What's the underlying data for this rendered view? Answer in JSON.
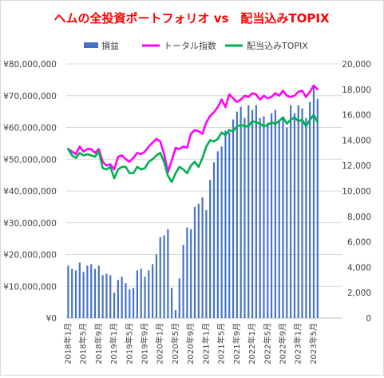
{
  "chart_data": {
    "type": "bar+line",
    "title": "ヘムの全投資ポートフォリオ vs　配当込みTOPIX",
    "legend_position": "top",
    "grid": true,
    "categories": [
      "2018年1月",
      "2018年2月",
      "2018年3月",
      "2018年4月",
      "2018年5月",
      "2018年6月",
      "2018年7月",
      "2018年8月",
      "2018年9月",
      "2018年10月",
      "2018年11月",
      "2018年12月",
      "2019年1月",
      "2019年2月",
      "2019年3月",
      "2019年4月",
      "2019年5月",
      "2019年6月",
      "2019年7月",
      "2019年8月",
      "2019年9月",
      "2019年10月",
      "2019年11月",
      "2019年12月",
      "2020年1月",
      "2020年2月",
      "2020年3月",
      "2020年4月",
      "2020年5月",
      "2020年6月",
      "2020年7月",
      "2020年8月",
      "2020年9月",
      "2020年10月",
      "2020年11月",
      "2020年12月",
      "2021年1月",
      "2021年2月",
      "2021年3月",
      "2021年4月",
      "2021年5月",
      "2021年6月",
      "2021年7月",
      "2021年8月",
      "2021年9月",
      "2021年10月",
      "2021年11月",
      "2021年12月",
      "2022年1月",
      "2022年2月",
      "2022年3月",
      "2022年4月",
      "2022年5月",
      "2022年6月",
      "2022年7月",
      "2022年8月",
      "2022年9月",
      "2022年10月",
      "2022年11月",
      "2022年12月",
      "2023年1月",
      "2023年2月",
      "2023年3月",
      "2023年4月",
      "2023年5月",
      "2023年6月",
      "2023年7月",
      "2023年8月",
      "2023年9月",
      "2023年10月",
      "2023年11月",
      "2023年12月"
    ],
    "x_tick_labels": [
      "2018年1月",
      "2018年5月",
      "2018年9月",
      "2019年1月",
      "2019年5月",
      "2019年9月",
      "2020年1月",
      "2020年5月",
      "2020年9月",
      "2021年1月",
      "2021年5月",
      "2021年9月",
      "2022年1月",
      "2022年5月",
      "2022年9月",
      "2023年1月",
      "2023年5月"
    ],
    "y_left": {
      "min": 0,
      "max": 80000000,
      "step": 10000000,
      "tick_labels": [
        "¥0",
        "¥10,000,000",
        "¥20,000,000",
        "¥30,000,000",
        "¥40,000,000",
        "¥50,000,000",
        "¥60,000,000",
        "¥70,000,000",
        "¥80,000,000"
      ]
    },
    "y_right": {
      "min": 0,
      "max": 20000,
      "step": 2000,
      "tick_labels": [
        "0",
        "2,000",
        "4,000",
        "6,000",
        "8,000",
        "10,000",
        "12,000",
        "14,000",
        "16,000",
        "18,000",
        "20,000"
      ]
    },
    "series": [
      {
        "name": "損益",
        "type": "bar",
        "axis": "left",
        "color": "#4472C4",
        "values": [
          16500000,
          15500000,
          15000000,
          17500000,
          14500000,
          16500000,
          17000000,
          15500000,
          16500000,
          13500000,
          14000000,
          13500000,
          8000000,
          12000000,
          13000000,
          11000000,
          9000000,
          9500000,
          15000000,
          15500000,
          13000000,
          15000000,
          17000000,
          20000000,
          25500000,
          26000000,
          28000000,
          9500000,
          2500000,
          12500000,
          23000000,
          28500000,
          28000000,
          35000000,
          36000000,
          38000000,
          34000000,
          43500000,
          49000000,
          52500000,
          54000000,
          59000000,
          58500000,
          62500000,
          65000000,
          66500000,
          63000000,
          67000000,
          65500000,
          67000000,
          63000000,
          63500000,
          61500000,
          64500000,
          65500000,
          62500000,
          63000000,
          60000000,
          67000000,
          64500000,
          67000000,
          66000000,
          63000000,
          68000000,
          73000000,
          69000000,
          null,
          null,
          null,
          null,
          null,
          null
        ]
      },
      {
        "name": "トータル指数",
        "type": "line",
        "axis": "right",
        "color": "#FF00FF",
        "values": [
          13300,
          13100,
          12900,
          13500,
          13100,
          13300,
          13300,
          13000,
          13300,
          12300,
          12000,
          12100,
          11700,
          12700,
          12800,
          12500,
          12300,
          12600,
          13000,
          12900,
          13100,
          13500,
          13800,
          14100,
          13900,
          12900,
          11500,
          12400,
          13400,
          13300,
          13500,
          13400,
          14500,
          14800,
          14700,
          14500,
          15400,
          15900,
          16200,
          16600,
          17200,
          16600,
          17600,
          17300,
          17000,
          17200,
          17500,
          17400,
          17700,
          17600,
          17200,
          17500,
          17300,
          17400,
          17700,
          17500,
          17900,
          17500,
          17400,
          17500,
          17800,
          17900,
          17400,
          17800,
          18300,
          18000,
          null,
          null,
          null,
          null,
          null,
          null
        ]
      },
      {
        "name": "配当込みTOPIX",
        "type": "line",
        "axis": "right",
        "color": "#00B050",
        "values": [
          13300,
          12800,
          12600,
          13000,
          12800,
          12900,
          12800,
          12700,
          13100,
          11800,
          11700,
          11900,
          11000,
          11700,
          11900,
          11900,
          11400,
          11400,
          11900,
          11700,
          11800,
          12300,
          12500,
          12800,
          13000,
          12300,
          11200,
          10700,
          11400,
          11900,
          11700,
          11400,
          12000,
          12300,
          11900,
          12600,
          13500,
          14000,
          13900,
          14100,
          14600,
          14400,
          14800,
          14700,
          15100,
          15200,
          15100,
          15100,
          15500,
          15400,
          15300,
          15100,
          15200,
          15400,
          15300,
          15500,
          15800,
          15300,
          15600,
          15800,
          15500,
          15600,
          15100,
          15600,
          16000,
          15400,
          null,
          null,
          null,
          null,
          null,
          null
        ]
      }
    ]
  }
}
